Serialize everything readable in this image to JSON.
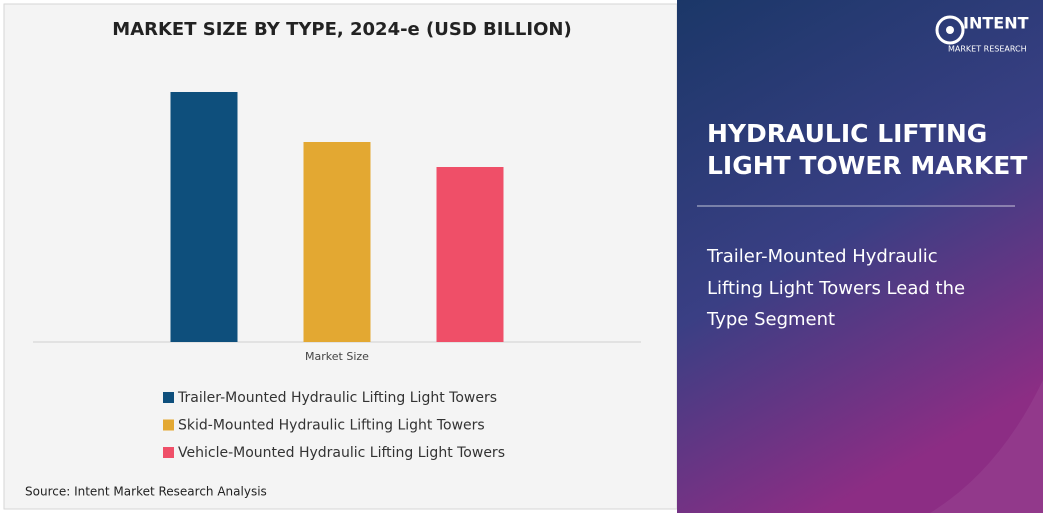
{
  "chart_data": {
    "type": "bar",
    "title": "MARKET SIZE BY TYPE, 2024-e (USD BILLION)",
    "categories": [
      "Market Size"
    ],
    "series": [
      {
        "name": "Trailer-Mounted Hydraulic Lifting Light Towers",
        "color": "#0e4f7c",
        "values": [
          1.0
        ]
      },
      {
        "name": "Skid-Mounted Hydraulic Lifting Light Towers",
        "color": "#e3a832",
        "values": [
          0.8
        ]
      },
      {
        "name": "Vehicle-Mounted Hydraulic Lifting Light Towers",
        "color": "#ef4f68",
        "values": [
          0.7
        ]
      }
    ],
    "legend": "bottom"
  },
  "source": "Source: Intent Market Research Analysis",
  "logo": {
    "name": "INTENT",
    "tagline": "MARKET RESEARCH"
  },
  "panel": {
    "heading": [
      "HYDRAULIC LIFTING",
      "LIGHT TOWER MARKET"
    ],
    "subheading": [
      "Trailer-Mounted Hydraulic",
      "Lifting Light Towers Lead the",
      "Type Segment"
    ]
  }
}
